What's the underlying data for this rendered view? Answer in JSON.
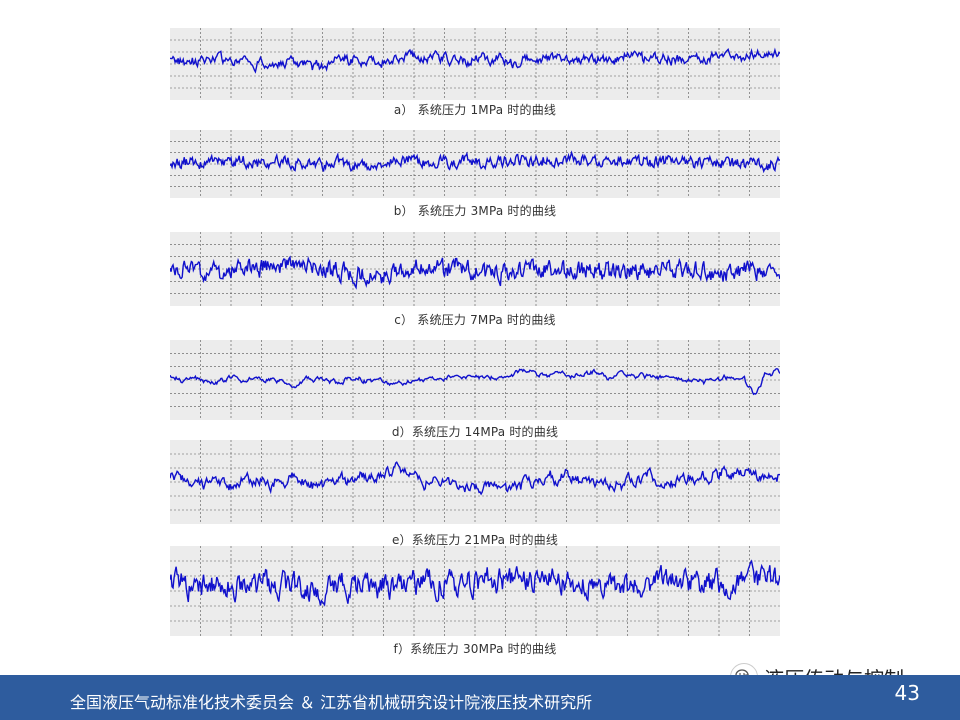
{
  "panels": [
    {
      "caption": "a） 系统压力 1MPa 时的曲线",
      "trace_color": "#1010cc"
    },
    {
      "caption": "b） 系统压力 3MPa 时的曲线",
      "trace_color": "#1010cc"
    },
    {
      "caption": "c） 系统压力 7MPa 时的曲线",
      "trace_color": "#1010cc"
    },
    {
      "caption": "d）系统压力 14MPa 时的曲线",
      "trace_color": "#1010cc"
    },
    {
      "caption": "e）系统压力 21MPa 时的曲线",
      "trace_color": "#1010cc"
    },
    {
      "caption": "f）系统压力 30MPa 时的曲线",
      "trace_color": "#1010cc"
    }
  ],
  "footer": {
    "organizations": "全国液压气动标准化技术委员会 ＆ 江苏省机械研究设计院液压技术研究所",
    "page_number": "43",
    "background_color": "#2e5c9e"
  },
  "watermark": {
    "text": "液压传动与控制",
    "icon": "wechat-icon"
  }
}
